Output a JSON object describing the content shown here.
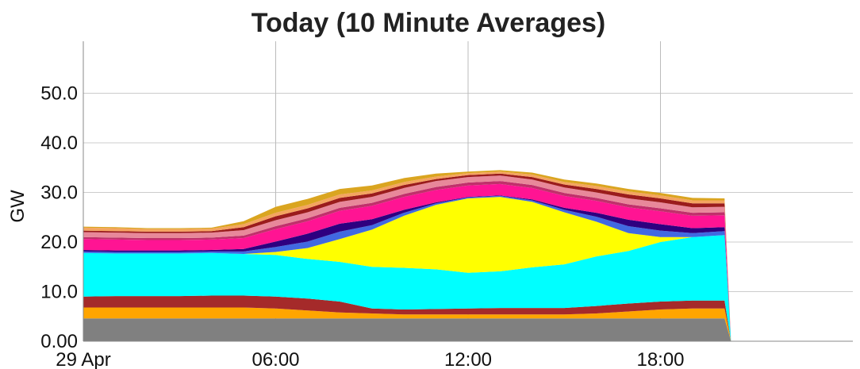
{
  "chart_data": {
    "type": "area",
    "title": "Today (10 Minute Averages)",
    "xlabel": "",
    "ylabel": "GW",
    "x_ticks": [
      "29 Apr",
      "06:00",
      "12:00",
      "18:00"
    ],
    "y_ticks": [
      "0.00",
      "10.0",
      "20.0",
      "30.0",
      "40.0",
      "50.0"
    ],
    "ylim": [
      0,
      60
    ],
    "xlim_hours": [
      0,
      24
    ],
    "grid": true,
    "legend": "none",
    "x_hours": [
      0,
      1,
      2,
      3,
      4,
      5,
      6,
      7,
      8,
      9,
      10,
      11,
      12,
      13,
      14,
      15,
      16,
      17,
      18,
      19,
      20,
      20.2,
      24
    ],
    "series": [
      {
        "color": "#808080",
        "values": [
          4.6,
          4.6,
          4.6,
          4.6,
          4.6,
          4.6,
          4.6,
          4.6,
          4.6,
          4.6,
          4.6,
          4.6,
          4.6,
          4.6,
          4.6,
          4.6,
          4.6,
          4.6,
          4.6,
          4.6,
          4.6,
          0,
          0
        ]
      },
      {
        "color": "#FFA500",
        "values": [
          2.2,
          2.2,
          2.2,
          2.2,
          2.2,
          2.2,
          2.0,
          1.6,
          1.2,
          1.0,
          0.8,
          0.8,
          0.8,
          0.8,
          0.8,
          0.8,
          1.0,
          1.4,
          1.8,
          2.0,
          2.0,
          0,
          0
        ]
      },
      {
        "color": "#A52A2A",
        "values": [
          2.2,
          2.3,
          2.3,
          2.3,
          2.4,
          2.4,
          2.4,
          2.4,
          2.2,
          1.0,
          1.0,
          1.1,
          1.2,
          1.3,
          1.3,
          1.3,
          1.5,
          1.6,
          1.6,
          1.6,
          1.6,
          0,
          0
        ]
      },
      {
        "color": "#00FFFF",
        "values": [
          8.8,
          8.6,
          8.6,
          8.6,
          8.6,
          8.4,
          8.4,
          8.0,
          8.0,
          8.4,
          8.4,
          8.0,
          7.2,
          7.4,
          8.2,
          8.8,
          10.0,
          10.6,
          12.0,
          12.8,
          13.2,
          0,
          0
        ]
      },
      {
        "color": "#FFFF00",
        "values": [
          0,
          0,
          0,
          0,
          0,
          0,
          0.6,
          2.2,
          4.6,
          7.5,
          10.5,
          13.0,
          15.0,
          15.0,
          13.2,
          10.5,
          7.0,
          3.6,
          1.0,
          0,
          0,
          0,
          0
        ]
      },
      {
        "color": "#4169E1",
        "values": [
          0.3,
          0.3,
          0.3,
          0.3,
          0.3,
          0.5,
          1.0,
          1.3,
          1.5,
          0.9,
          0.6,
          0.3,
          0.2,
          0.2,
          0.3,
          0.5,
          1.0,
          1.4,
          1.3,
          0.8,
          0.8,
          0,
          0
        ]
      },
      {
        "color": "#2E0080",
        "values": [
          0.3,
          0.3,
          0.3,
          0.3,
          0.3,
          0.5,
          1.1,
          1.6,
          1.6,
          1.2,
          0.6,
          0.2,
          0.1,
          0.1,
          0.2,
          0.4,
          0.8,
          1.3,
          1.3,
          1.0,
          0.8,
          0,
          0
        ]
      },
      {
        "color": "#FF1493",
        "values": [
          2.2,
          2.2,
          2.1,
          2.1,
          2.1,
          2.2,
          2.5,
          2.5,
          2.6,
          2.7,
          2.6,
          2.5,
          2.3,
          2.3,
          2.3,
          2.4,
          2.4,
          2.5,
          2.6,
          2.5,
          2.4,
          0,
          0
        ]
      },
      {
        "color": "#C0306B",
        "values": [
          0.4,
          0.4,
          0.4,
          0.4,
          0.4,
          0.5,
          0.6,
          0.6,
          0.6,
          0.6,
          0.6,
          0.6,
          0.6,
          0.6,
          0.6,
          0.6,
          0.6,
          0.6,
          0.6,
          0.6,
          0.6,
          0,
          0
        ]
      },
      {
        "color": "#E8889A",
        "values": [
          1.0,
          1.0,
          1.0,
          1.0,
          1.0,
          1.1,
          1.2,
          1.2,
          1.2,
          1.2,
          1.2,
          1.2,
          1.1,
          1.1,
          1.1,
          1.1,
          1.1,
          1.2,
          1.2,
          1.1,
          1.1,
          0,
          0
        ]
      },
      {
        "color": "#9B1C1C",
        "values": [
          0.3,
          0.3,
          0.3,
          0.3,
          0.3,
          0.6,
          0.8,
          0.8,
          0.8,
          0.7,
          0.6,
          0.4,
          0.4,
          0.4,
          0.5,
          0.6,
          0.7,
          0.8,
          0.8,
          0.8,
          0.7,
          0,
          0
        ]
      },
      {
        "color": "#F4A460",
        "values": [
          0.6,
          0.6,
          0.5,
          0.5,
          0.5,
          0.6,
          0.7,
          0.7,
          0.7,
          0.6,
          0.6,
          0.5,
          0.4,
          0.4,
          0.5,
          0.5,
          0.6,
          0.6,
          0.6,
          0.6,
          0.6,
          0,
          0
        ]
      },
      {
        "color": "#DAA520",
        "values": [
          0.2,
          0.2,
          0.2,
          0.2,
          0.2,
          0.6,
          1.2,
          1.2,
          1.1,
          1.0,
          0.8,
          0.6,
          0.3,
          0.3,
          0.4,
          0.5,
          0.5,
          0.5,
          0.5,
          0.5,
          0.4,
          0,
          0
        ]
      }
    ]
  }
}
